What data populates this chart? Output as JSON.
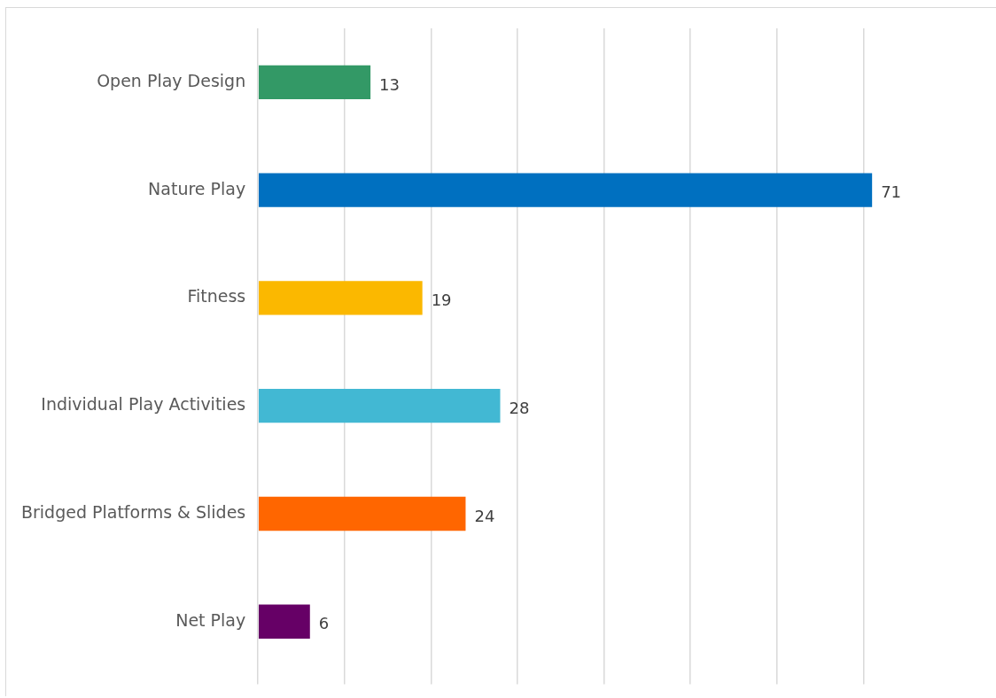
{
  "chart_data": {
    "type": "bar",
    "orientation": "horizontal",
    "categories": [
      "Open Play Design",
      "Nature Play",
      "Fitness",
      "Individual Play Activities",
      "Bridged Platforms & Slides",
      "Net Play"
    ],
    "values": [
      13,
      71,
      19,
      28,
      24,
      6
    ],
    "colors": [
      "#339966",
      "#0070c0",
      "#fbb800",
      "#42b8d3",
      "#ff6600",
      "#660066"
    ],
    "xticks": [
      {
        "value": 0,
        "label": null
      },
      {
        "value": 10,
        "label": null
      },
      {
        "value": 20,
        "label": null
      },
      {
        "value": 30,
        "label": null
      },
      {
        "value": 40,
        "label": null
      },
      {
        "value": 50,
        "label": null
      },
      {
        "value": 60,
        "label": null
      },
      {
        "value": 70,
        "label": null
      }
    ],
    "grid": "x",
    "tick_labels": "y",
    "data_labels": true,
    "legend": false
  }
}
